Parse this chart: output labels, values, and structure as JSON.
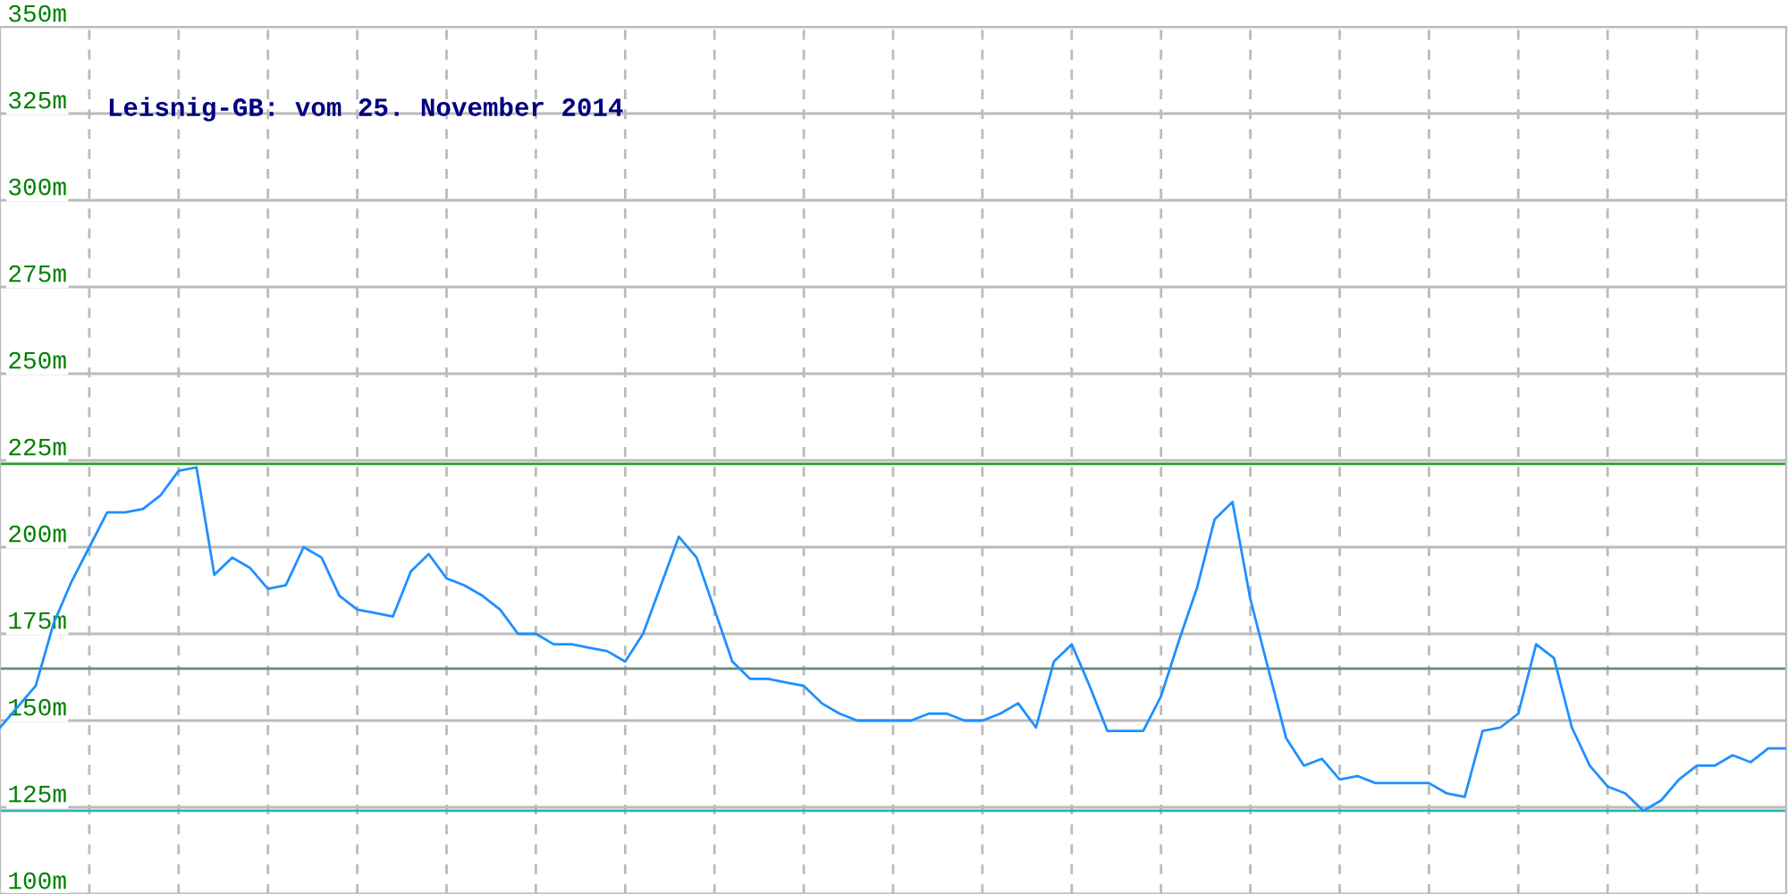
{
  "chart_data": {
    "type": "line",
    "title": "Leisnig-GB: vom 25. November 2014",
    "categories": [
      null,
      null,
      null,
      null,
      null,
      null,
      null,
      null,
      null,
      null,
      null,
      null,
      null,
      null,
      null,
      null,
      null,
      null,
      null,
      null,
      null,
      null,
      null,
      null,
      null,
      null,
      null,
      null,
      null,
      null,
      null,
      null,
      null,
      null,
      null,
      null,
      null,
      null,
      null,
      null,
      null,
      null,
      null,
      null,
      null,
      null,
      null,
      null,
      null,
      null,
      null,
      null,
      null,
      null,
      null,
      null,
      null,
      null,
      null,
      null,
      null,
      null,
      null,
      null,
      null,
      null,
      null,
      null,
      null,
      null,
      null,
      null,
      null,
      null,
      null,
      null,
      null,
      null,
      null,
      null,
      null,
      null,
      null,
      null,
      null,
      null,
      null,
      null,
      null,
      null,
      null,
      null,
      null,
      null,
      null,
      null,
      null,
      null,
      null,
      null,
      null
    ],
    "series": [
      {
        "color": "#1e90ff",
        "values": [
          148,
          154,
          160,
          178,
          190,
          200,
          210,
          210,
          211,
          215,
          222,
          223,
          192,
          197,
          194,
          188,
          189,
          200,
          197,
          186,
          182,
          181,
          180,
          193,
          198,
          191,
          189,
          186,
          182,
          175,
          175,
          172,
          172,
          171,
          170,
          167,
          175,
          189,
          203,
          197,
          182,
          167,
          162,
          162,
          161,
          160,
          155,
          152,
          150,
          150,
          150,
          150,
          152,
          152,
          150,
          150,
          152,
          155,
          148,
          167,
          172,
          160,
          147,
          147,
          147,
          157,
          173,
          188,
          208,
          213,
          185,
          165,
          145,
          137,
          139,
          133,
          134,
          132,
          132,
          132,
          132,
          129,
          128,
          147,
          148,
          152,
          172,
          168,
          148,
          137,
          131,
          129,
          124,
          127,
          133,
          137,
          137,
          140,
          138,
          142,
          142
        ]
      }
    ],
    "ylim": [
      100,
      350
    ],
    "yticks": [
      {
        "value": 100,
        "label": "100m"
      },
      {
        "value": 125,
        "label": "125m"
      },
      {
        "value": 150,
        "label": "150m"
      },
      {
        "value": 175,
        "label": "175m"
      },
      {
        "value": 200,
        "label": "200m"
      },
      {
        "value": 225,
        "label": "225m"
      },
      {
        "value": 250,
        "label": "250m"
      },
      {
        "value": 275,
        "label": "275m"
      },
      {
        "value": 300,
        "label": "300m"
      },
      {
        "value": 325,
        "label": "325m"
      },
      {
        "value": 350,
        "label": "350m"
      }
    ],
    "tick_labels": "y",
    "grid": true,
    "ref_lines": [
      {
        "axis": "y",
        "value": 224,
        "color": "#2e9a2e"
      },
      {
        "axis": "y",
        "value": 165,
        "color": "#6a8a7a"
      },
      {
        "axis": "y",
        "value": 124,
        "color": "#2ab5b0"
      }
    ]
  }
}
